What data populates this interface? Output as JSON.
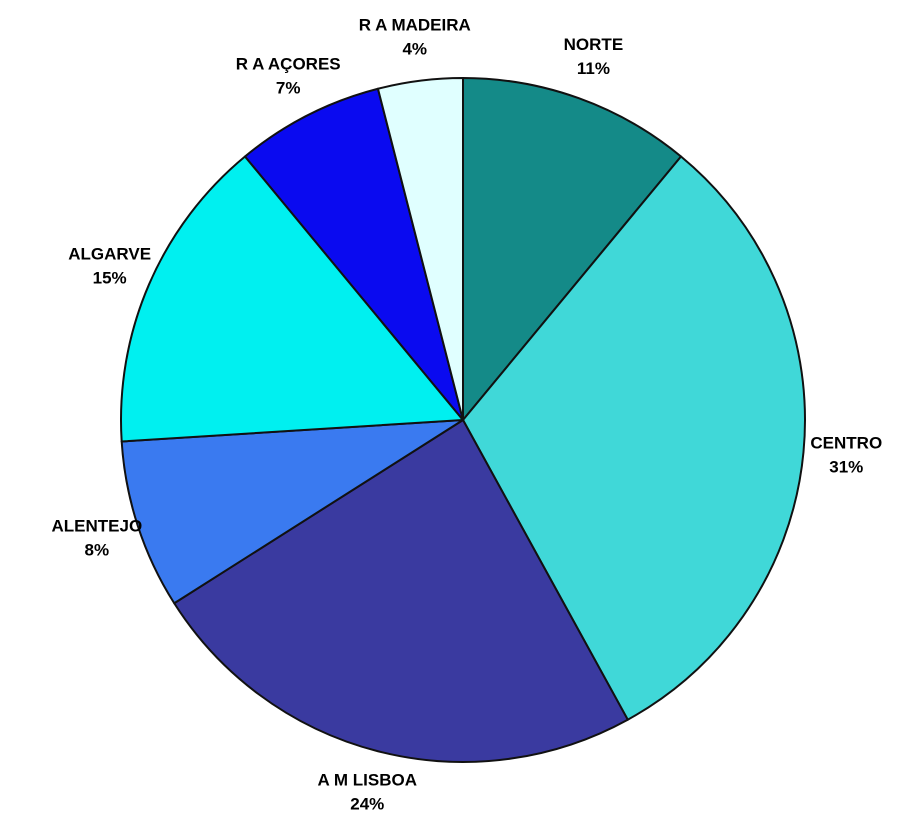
{
  "chart_data": {
    "type": "pie",
    "categories": [
      "NORTE",
      "CENTRO",
      "A M LISBOA",
      "ALENTEJO",
      "ALGARVE",
      "R A AÇORES",
      "R A MADEIRA"
    ],
    "values": [
      11,
      31,
      24,
      8,
      15,
      7,
      4
    ],
    "value_labels": [
      "11%",
      "31%",
      "24%",
      "8%",
      "15%",
      "7%",
      "4%"
    ],
    "colors": [
      "#148a88",
      "#40d8d8",
      "#3a3aa0",
      "#3a7af0",
      "#00f0f0",
      "#0a0af0",
      "#e0ffff"
    ]
  }
}
